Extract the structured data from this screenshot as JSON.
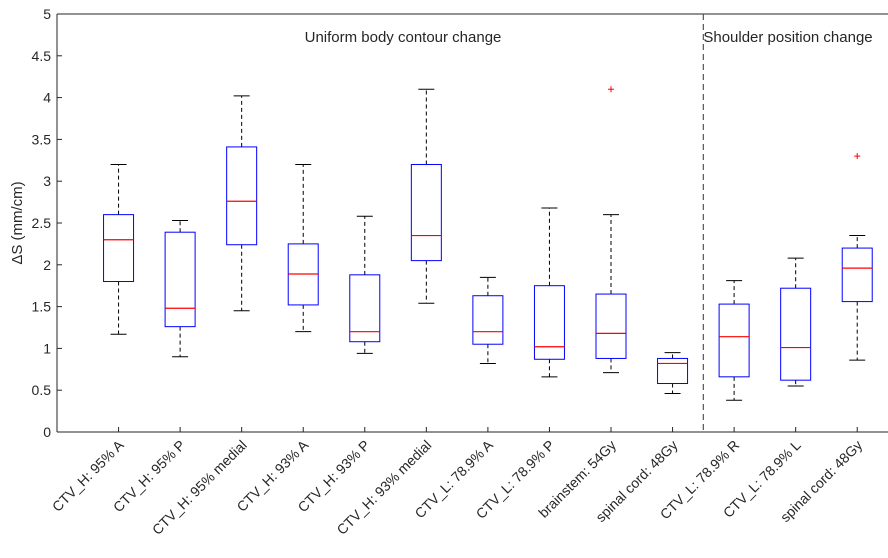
{
  "chart_data": {
    "type": "boxplot",
    "ylabel": "ΔS (mm/cm)",
    "ylim": [
      0,
      5
    ],
    "yticks": [
      "0",
      "0.5",
      "1",
      "1.5",
      "2",
      "2.5",
      "3",
      "3.5",
      "4",
      "4.5",
      "5"
    ],
    "grid": false,
    "categories": [
      "CTV_H: 95% A",
      "CTV_H: 95% P",
      "CTV_H: 95% medial",
      "CTV_H: 93% A",
      "CTV_H: 93% P",
      "CTV_H: 93% medial",
      "CTV_L: 78.9% A",
      "CTV_L: 78.9% P",
      "brainstem: 54Gy",
      "spinal cord: 48Gy",
      "CTV_L: 78.9% R",
      "CTV_L: 78.9% L",
      "spinal cord: 48Gy"
    ],
    "boxes": [
      {
        "whisker_low": 1.17,
        "q1": 1.8,
        "median": 2.3,
        "q3": 2.6,
        "whisker_high": 3.2,
        "outliers": []
      },
      {
        "whisker_low": 0.9,
        "q1": 1.26,
        "median": 1.48,
        "q3": 2.39,
        "whisker_high": 2.53,
        "outliers": []
      },
      {
        "whisker_low": 1.45,
        "q1": 2.24,
        "median": 2.76,
        "q3": 3.41,
        "whisker_high": 4.02,
        "outliers": []
      },
      {
        "whisker_low": 1.2,
        "q1": 1.52,
        "median": 1.89,
        "q3": 2.25,
        "whisker_high": 3.2,
        "outliers": []
      },
      {
        "whisker_low": 0.94,
        "q1": 1.08,
        "median": 1.2,
        "q3": 1.88,
        "whisker_high": 2.58,
        "outliers": []
      },
      {
        "whisker_low": 1.54,
        "q1": 2.05,
        "median": 2.35,
        "q3": 3.2,
        "whisker_high": 4.1,
        "outliers": []
      },
      {
        "whisker_low": 0.82,
        "q1": 1.05,
        "median": 1.2,
        "q3": 1.63,
        "whisker_high": 1.85,
        "outliers": []
      },
      {
        "whisker_low": 0.66,
        "q1": 0.87,
        "median": 1.02,
        "q3": 1.75,
        "whisker_high": 2.68,
        "outliers": []
      },
      {
        "whisker_low": 0.71,
        "q1": 0.88,
        "median": 1.18,
        "q3": 1.65,
        "whisker_high": 2.6,
        "outliers": [
          4.1
        ]
      },
      {
        "whisker_low": 0.46,
        "q1": 0.58,
        "median": 0.82,
        "q3": 0.88,
        "whisker_high": 0.95,
        "outliers": []
      },
      {
        "whisker_low": 0.38,
        "q1": 0.66,
        "median": 1.14,
        "q3": 1.53,
        "whisker_high": 1.81,
        "outliers": []
      },
      {
        "whisker_low": 0.55,
        "q1": 0.62,
        "median": 1.01,
        "q3": 1.72,
        "whisker_high": 2.08,
        "outliers": []
      },
      {
        "whisker_low": 0.86,
        "q1": 1.56,
        "median": 1.96,
        "q3": 2.2,
        "whisker_high": 2.35,
        "outliers": [
          3.3
        ]
      }
    ],
    "annotations": [
      {
        "text": "Uniform body contour change"
      },
      {
        "text": "Shoulder position change"
      }
    ],
    "divider_after_category_index": 9,
    "colors": {
      "box": "#0000ff",
      "median": "#ff0000",
      "whisker": "#000000",
      "outlier": "#ff0000",
      "axis": "#262626"
    }
  }
}
